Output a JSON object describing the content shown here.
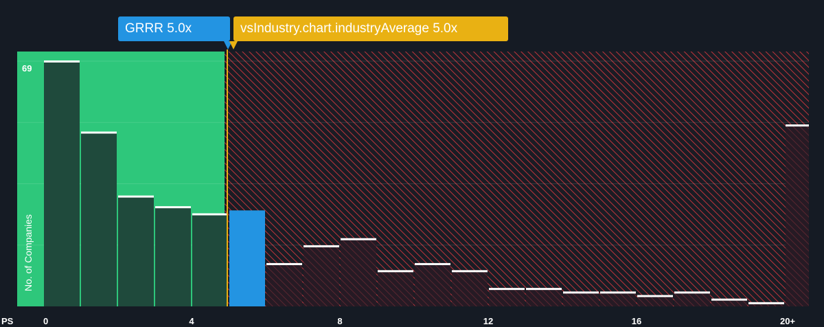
{
  "callouts": {
    "company": "GRRR 5.0x",
    "industry": "vsIndustry.chart.industryAverage 5.0x"
  },
  "colors": {
    "background": "#151b24",
    "undervalued_zone": "#2ec77b",
    "overvalued_hatch": "#c0343c",
    "bar_dark": "#1f4a3c",
    "bar_hatched": "#2a1c25",
    "company_bar": "#2394e2",
    "industry_line": "#e9b113",
    "bar_cap": "#ffffff"
  },
  "chart_data": {
    "type": "bar",
    "xlabel": "PS",
    "ylabel": "No. of Companies",
    "x_ticks": [
      "0",
      "4",
      "8",
      "12",
      "16",
      "20+"
    ],
    "y_max_label": "69",
    "ylim": [
      0,
      69
    ],
    "company_ps": 5.0,
    "industry_average_ps": 5.0,
    "undervalued_range": [
      0,
      5.0
    ],
    "grid": true,
    "bins": [
      {
        "x0": 0,
        "x1": 1,
        "value": 69
      },
      {
        "x0": 1,
        "x1": 2,
        "value": 49
      },
      {
        "x0": 2,
        "x1": 3,
        "value": 31
      },
      {
        "x0": 3,
        "x1": 4,
        "value": 28
      },
      {
        "x0": 4,
        "x1": 5,
        "value": 26
      },
      {
        "x0": 5,
        "x1": 6,
        "value": 27,
        "highlight": true
      },
      {
        "x0": 6,
        "x1": 7,
        "value": 12
      },
      {
        "x0": 7,
        "x1": 8,
        "value": 17
      },
      {
        "x0": 8,
        "x1": 9,
        "value": 19
      },
      {
        "x0": 9,
        "x1": 10,
        "value": 10
      },
      {
        "x0": 10,
        "x1": 11,
        "value": 12
      },
      {
        "x0": 11,
        "x1": 12,
        "value": 10
      },
      {
        "x0": 12,
        "x1": 13,
        "value": 5
      },
      {
        "x0": 13,
        "x1": 14,
        "value": 5
      },
      {
        "x0": 14,
        "x1": 15,
        "value": 4
      },
      {
        "x0": 15,
        "x1": 16,
        "value": 4
      },
      {
        "x0": 16,
        "x1": 17,
        "value": 3
      },
      {
        "x0": 17,
        "x1": 18,
        "value": 4
      },
      {
        "x0": 18,
        "x1": 19,
        "value": 2
      },
      {
        "x0": 19,
        "x1": 20,
        "value": 1
      },
      {
        "x0": 20,
        "x1": 20.5,
        "value": 51
      }
    ]
  }
}
